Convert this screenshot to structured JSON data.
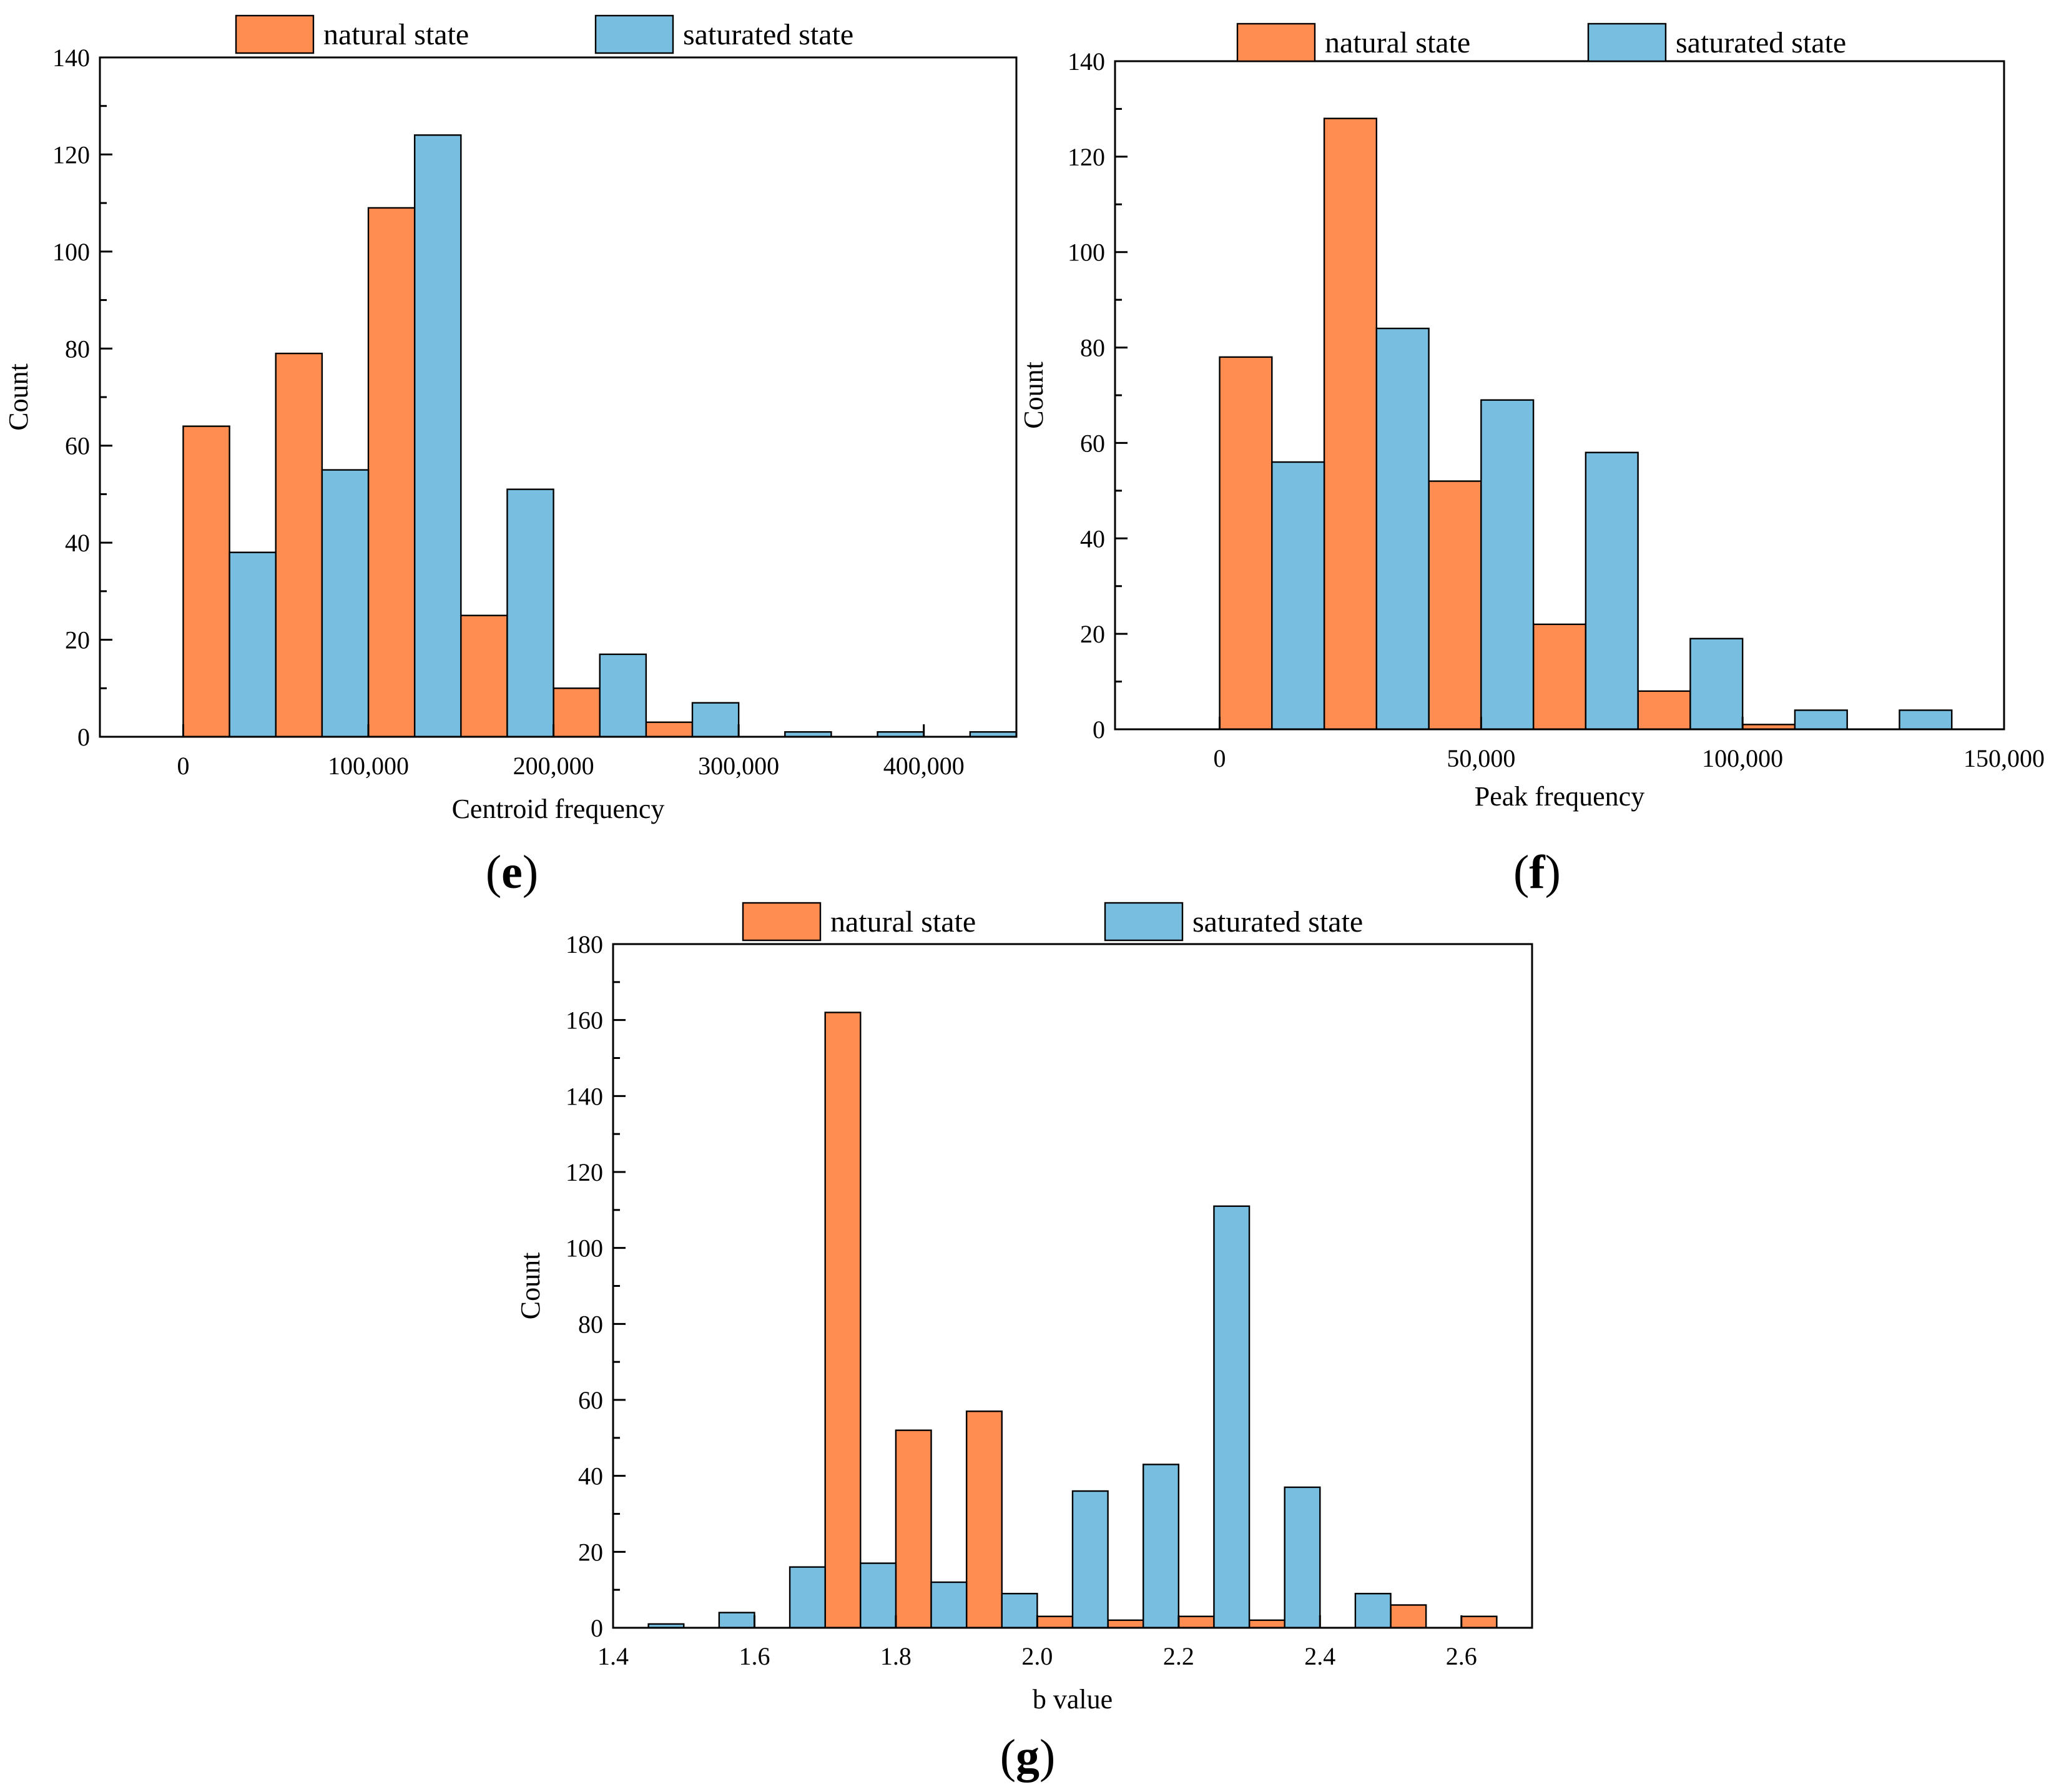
{
  "colors": {
    "natural": "#FF8C50",
    "saturated": "#78BEE0",
    "edge": "#000000"
  },
  "chart_data": [
    {
      "id": "e",
      "panel_label": "e",
      "type": "bar",
      "legend": [
        "natural state",
        "saturated state"
      ],
      "xlabel": "Centroid frequency",
      "ylabel": "Count",
      "xlim": [
        -45000,
        450000
      ],
      "ylim": [
        0,
        140
      ],
      "xticks": [
        0,
        100000,
        200000,
        300000,
        400000
      ],
      "xtick_labels": [
        "0",
        "100,000",
        "200,000",
        "300,000",
        "400,000"
      ],
      "yticks": [
        0,
        20,
        40,
        60,
        80,
        100,
        120,
        140
      ],
      "ytick_labels": [
        "0",
        "20",
        "40",
        "60",
        "80",
        "100",
        "120",
        "140"
      ],
      "yminor": [
        10,
        30,
        50,
        70,
        90,
        110,
        130
      ],
      "series": [
        {
          "name": "natural state",
          "bins": [
            [
              0,
              25000,
              64
            ],
            [
              50000,
              75000,
              79
            ],
            [
              100000,
              125000,
              109
            ],
            [
              150000,
              175000,
              25
            ],
            [
              200000,
              225000,
              10
            ],
            [
              250000,
              275000,
              3
            ]
          ]
        },
        {
          "name": "saturated state",
          "bins": [
            [
              25000,
              50000,
              38
            ],
            [
              75000,
              100000,
              55
            ],
            [
              125000,
              150000,
              124
            ],
            [
              175000,
              200000,
              51
            ],
            [
              225000,
              250000,
              17
            ],
            [
              275000,
              300000,
              7
            ],
            [
              325000,
              350000,
              1
            ],
            [
              375000,
              400000,
              1
            ],
            [
              425000,
              450000,
              1
            ]
          ]
        }
      ]
    },
    {
      "id": "f",
      "panel_label": "f",
      "type": "bar",
      "legend": [
        "natural state",
        "saturated state"
      ],
      "xlabel": "Peak frequency",
      "ylabel": "Count",
      "xlim": [
        -20000,
        150000
      ],
      "ylim": [
        0,
        140
      ],
      "xticks": [
        0,
        50000,
        100000,
        150000
      ],
      "xtick_labels": [
        "0",
        "50,000",
        "100,000",
        "150,000"
      ],
      "yticks": [
        0,
        20,
        40,
        60,
        80,
        100,
        120,
        140
      ],
      "ytick_labels": [
        "0",
        "20",
        "40",
        "60",
        "80",
        "100",
        "120",
        "140"
      ],
      "yminor": [
        10,
        30,
        50,
        70,
        90,
        110,
        130
      ],
      "series": [
        {
          "name": "natural state",
          "bins": [
            [
              0,
              10000,
              78
            ],
            [
              20000,
              30000,
              128
            ],
            [
              40000,
              50000,
              52
            ],
            [
              60000,
              70000,
              22
            ],
            [
              80000,
              90000,
              8
            ],
            [
              100000,
              110000,
              1
            ]
          ]
        },
        {
          "name": "saturated state",
          "bins": [
            [
              10000,
              20000,
              56
            ],
            [
              30000,
              40000,
              84
            ],
            [
              50000,
              60000,
              69
            ],
            [
              70000,
              80000,
              58
            ],
            [
              90000,
              100000,
              19
            ],
            [
              110000,
              120000,
              4
            ],
            [
              130000,
              140000,
              4
            ]
          ]
        }
      ]
    },
    {
      "id": "g",
      "panel_label": "g",
      "type": "bar",
      "legend": [
        "natural state",
        "saturated state"
      ],
      "xlabel": "b value",
      "ylabel": "Count",
      "xlim": [
        1.4,
        2.7
      ],
      "ylim": [
        0,
        180
      ],
      "xticks": [
        1.4,
        1.6,
        1.8,
        2.0,
        2.2,
        2.4,
        2.6
      ],
      "xtick_labels": [
        "1.4",
        "1.6",
        "1.8",
        "2.0",
        "2.2",
        "2.4",
        "2.6"
      ],
      "yticks": [
        0,
        20,
        40,
        60,
        80,
        100,
        120,
        140,
        160,
        180
      ],
      "ytick_labels": [
        "0",
        "20",
        "40",
        "60",
        "80",
        "100",
        "120",
        "140",
        "160",
        "180"
      ],
      "yminor": [
        10,
        30,
        50,
        70,
        90,
        110,
        130,
        150,
        170
      ],
      "series": [
        {
          "name": "natural state",
          "bins": [
            [
              1.7,
              1.75,
              162
            ],
            [
              1.8,
              1.85,
              52
            ],
            [
              1.9,
              1.95,
              57
            ],
            [
              2.0,
              2.05,
              3
            ],
            [
              2.1,
              2.15,
              2
            ],
            [
              2.2,
              2.25,
              3
            ],
            [
              2.3,
              2.35,
              2
            ],
            [
              2.5,
              2.55,
              6
            ],
            [
              2.6,
              2.65,
              3
            ]
          ]
        },
        {
          "name": "saturated state",
          "bins": [
            [
              1.45,
              1.5,
              1
            ],
            [
              1.55,
              1.6,
              4
            ],
            [
              1.65,
              1.7,
              16
            ],
            [
              1.75,
              1.8,
              17
            ],
            [
              1.85,
              1.9,
              12
            ],
            [
              1.95,
              2.0,
              9
            ],
            [
              2.05,
              2.1,
              36
            ],
            [
              2.15,
              2.2,
              43
            ],
            [
              2.25,
              2.3,
              111
            ],
            [
              2.35,
              2.4,
              37
            ],
            [
              2.45,
              2.5,
              9
            ]
          ]
        }
      ]
    }
  ]
}
